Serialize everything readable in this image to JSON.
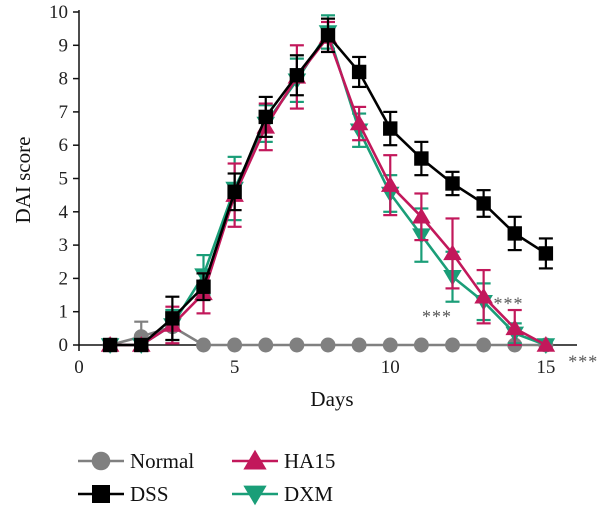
{
  "chart_data": {
    "type": "line",
    "xlabel": "Days",
    "ylabel": "DAI score",
    "xlim": [
      0,
      16
    ],
    "ylim": [
      0,
      10
    ],
    "x_ticks": [
      0,
      5,
      10,
      15
    ],
    "y_ticks": [
      0,
      1,
      2,
      3,
      4,
      5,
      6,
      7,
      8,
      9,
      10
    ],
    "legend_position": "bottom",
    "series": [
      {
        "name": "Normal",
        "color": "#808080",
        "marker": "circle",
        "x": [
          1,
          2,
          3,
          4,
          5,
          6,
          7,
          8,
          9,
          10,
          11,
          12,
          13,
          14,
          15
        ],
        "y": [
          0,
          0.25,
          0.55,
          0,
          0,
          0,
          0,
          0,
          0,
          0,
          0,
          0,
          0,
          0,
          0
        ],
        "err": [
          0,
          0.45,
          0.5,
          0,
          0,
          0,
          0,
          0,
          0,
          0,
          0,
          0,
          0,
          0,
          0
        ]
      },
      {
        "name": "DSS",
        "color": "#000000",
        "marker": "square",
        "x": [
          1,
          2,
          3,
          4,
          5,
          6,
          7,
          8,
          9,
          10,
          11,
          12,
          13,
          14,
          15
        ],
        "y": [
          0,
          0,
          0.8,
          1.75,
          4.6,
          6.85,
          8.1,
          9.3,
          8.2,
          6.5,
          5.6,
          4.85,
          4.25,
          3.35,
          2.75
        ],
        "err": [
          0,
          0,
          0.65,
          0.4,
          0.55,
          0.6,
          0.6,
          0.5,
          0.45,
          0.5,
          0.5,
          0.35,
          0.4,
          0.5,
          0.45
        ]
      },
      {
        "name": "HA15",
        "color": "#C2185B",
        "marker": "triangle-up",
        "x": [
          1,
          2,
          3,
          4,
          5,
          6,
          7,
          8,
          9,
          10,
          11,
          12,
          13,
          14,
          15
        ],
        "y": [
          0,
          0,
          0.6,
          1.55,
          4.5,
          6.55,
          8.05,
          9.25,
          6.65,
          4.8,
          3.85,
          2.75,
          1.45,
          0.5,
          0
        ],
        "err": [
          0,
          0,
          0.55,
          0.6,
          0.95,
          0.7,
          0.95,
          0.45,
          0.5,
          0.9,
          0.7,
          1.05,
          0.8,
          0.55,
          0
        ]
      },
      {
        "name": "DXM",
        "color": "#1A9E78",
        "marker": "triangle-down",
        "x": [
          1,
          2,
          3,
          4,
          5,
          6,
          7,
          8,
          9,
          10,
          11,
          12,
          13,
          14,
          15
        ],
        "y": [
          0,
          0,
          0.6,
          2.1,
          4.7,
          6.65,
          7.95,
          9.4,
          6.45,
          4.55,
          3.3,
          2.05,
          1.3,
          0.35,
          0
        ],
        "err": [
          0,
          0,
          0.45,
          0.6,
          0.95,
          0.55,
          0.65,
          0.5,
          0.5,
          0.55,
          0.8,
          0.75,
          0.55,
          0.3,
          0
        ]
      }
    ],
    "annotations": [
      {
        "text": "***",
        "x": 11.5,
        "y": 0.85
      },
      {
        "text": "***",
        "x": 13.8,
        "y": 1.25
      },
      {
        "text": "***",
        "x": 16.2,
        "y": -0.5
      }
    ]
  }
}
